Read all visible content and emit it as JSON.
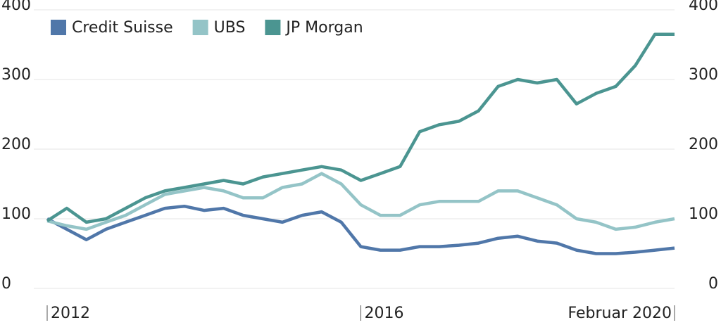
{
  "chart_data": {
    "type": "line",
    "categories": [
      "2012",
      null,
      null,
      null,
      null,
      null,
      null,
      null,
      null,
      null,
      null,
      null,
      null,
      null,
      null,
      null,
      "2016",
      null,
      null,
      null,
      null,
      null,
      null,
      null,
      null,
      null,
      null,
      null,
      null,
      null,
      null,
      null,
      "Februar 2020"
    ],
    "series": [
      {
        "name": "Credit Suisse",
        "color": "#5077a9",
        "values": [
          100,
          85,
          70,
          85,
          95,
          105,
          115,
          118,
          112,
          115,
          105,
          100,
          95,
          105,
          110,
          95,
          60,
          55,
          55,
          60,
          60,
          62,
          65,
          72,
          75,
          68,
          65,
          55,
          50,
          50,
          52,
          55,
          58
        ]
      },
      {
        "name": "UBS",
        "color": "#94c4c7",
        "values": [
          97,
          90,
          85,
          95,
          105,
          120,
          135,
          140,
          145,
          140,
          130,
          130,
          145,
          150,
          165,
          150,
          120,
          105,
          105,
          120,
          125,
          125,
          125,
          140,
          140,
          130,
          120,
          100,
          95,
          85,
          88,
          95,
          100
        ]
      },
      {
        "name": "JP Morgan",
        "color": "#4b9591",
        "values": [
          97,
          115,
          95,
          100,
          115,
          130,
          140,
          145,
          150,
          155,
          150,
          160,
          165,
          170,
          175,
          170,
          155,
          165,
          175,
          225,
          235,
          240,
          255,
          290,
          300,
          295,
          300,
          265,
          280,
          290,
          320,
          365,
          365
        ]
      }
    ],
    "ylim": [
      0,
      400
    ],
    "yticks": [
      0,
      100,
      200,
      300,
      400
    ],
    "y2lim": [
      0,
      400
    ],
    "y2ticks": [
      0,
      100,
      200,
      300,
      400
    ],
    "grid": true,
    "legend": "top-left"
  }
}
